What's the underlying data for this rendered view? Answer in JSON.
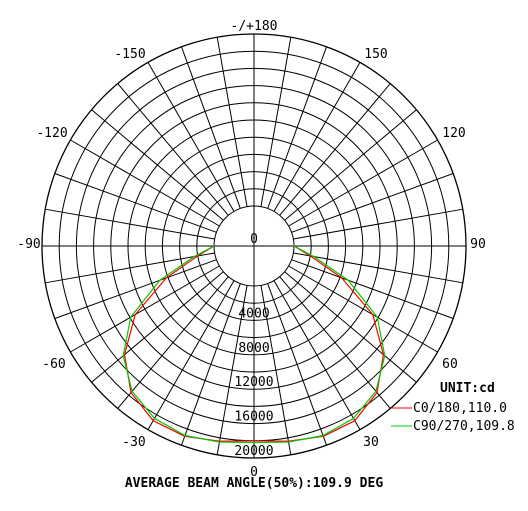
{
  "chart_data": {
    "type": "polar",
    "unit_label": "UNIT:cd",
    "footer": "AVERAGE BEAM ANGLE(50%):109.9 DEG",
    "radial_ticks": [
      "0",
      "4000",
      "8000",
      "12000",
      "16000",
      "20000"
    ],
    "radial_values": [
      0,
      4000,
      8000,
      12000,
      16000,
      20000
    ],
    "angle_labels": [
      {
        "text": "-/+180",
        "angle": 180
      },
      {
        "text": "-150",
        "angle": -150
      },
      {
        "text": "150",
        "angle": 150
      },
      {
        "text": "-120",
        "angle": -120
      },
      {
        "text": "120",
        "angle": 120
      },
      {
        "text": "-90",
        "angle": -90
      },
      {
        "text": "90",
        "angle": 90
      },
      {
        "text": "-60",
        "angle": -60
      },
      {
        "text": "60",
        "angle": 60
      },
      {
        "text": "-30",
        "angle": -30
      },
      {
        "text": "30",
        "angle": 30
      },
      {
        "text": "0",
        "angle": 0
      }
    ],
    "series": [
      {
        "name": "C0/180,110.0",
        "color": "#ff0000",
        "angles": [
          -90,
          -80,
          -70,
          -60,
          -50,
          -40,
          -30,
          -20,
          -10,
          0,
          10,
          20,
          30,
          40,
          50,
          60,
          70,
          80,
          90
        ],
        "values": [
          0,
          2000,
          6200,
          11300,
          15000,
          17600,
          18800,
          18900,
          18400,
          18000,
          18400,
          18900,
          18800,
          17600,
          15000,
          11300,
          6200,
          2000,
          0
        ]
      },
      {
        "name": "C90/270,109.8",
        "color": "#00cc00",
        "angles": [
          -90,
          -80,
          -70,
          -60,
          -50,
          -40,
          -30,
          -20,
          -10,
          0,
          10,
          20,
          30,
          40,
          50,
          60,
          70,
          80,
          90
        ],
        "values": [
          0,
          2400,
          7000,
          11900,
          15200,
          17400,
          18500,
          18800,
          18500,
          18200,
          18500,
          18800,
          18500,
          17400,
          15200,
          11900,
          7000,
          2400,
          0
        ]
      }
    ]
  }
}
